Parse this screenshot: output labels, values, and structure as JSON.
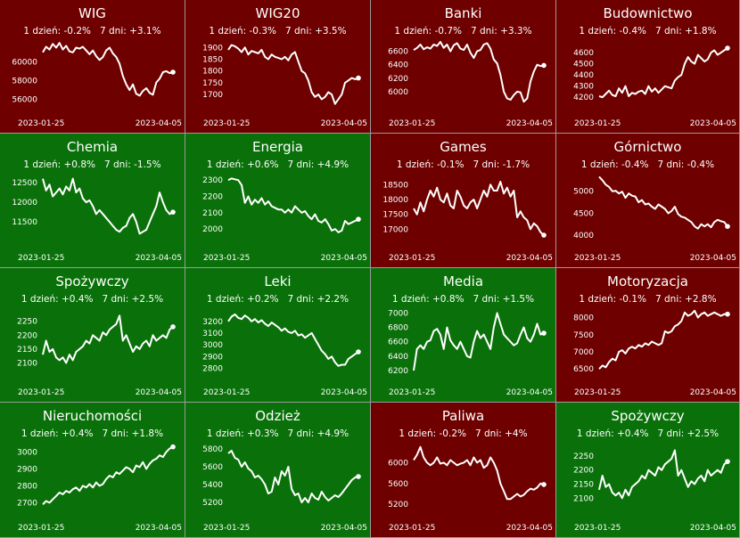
{
  "colors": {
    "up": "#0a710a",
    "down": "#6e0000",
    "line": "#ffffff"
  },
  "change_labels": {
    "day": "1 dzień:",
    "week": "7 dni:"
  },
  "chart_data": [
    {
      "type": "line",
      "title": "WIG",
      "change_1d": "-0.2%",
      "change_7d": "+3.1%",
      "trend": "down",
      "x_labels": [
        "2023-01-25",
        "2023-04-05"
      ],
      "yticks": [
        56000,
        58000,
        60000
      ],
      "ylim": [
        55400,
        62400
      ],
      "values": [
        61000,
        61600,
        61300,
        61900,
        61500,
        62000,
        61300,
        61700,
        61100,
        61000,
        61500,
        61400,
        61600,
        61200,
        60800,
        61200,
        60600,
        60200,
        60500,
        61200,
        61500,
        60900,
        60500,
        59800,
        58500,
        57600,
        57000,
        57600,
        56600,
        56400,
        56900,
        57200,
        56700,
        56500,
        57800,
        58200,
        58900,
        59000,
        58800,
        58900
      ]
    },
    {
      "type": "line",
      "title": "WIG20",
      "change_1d": "-0.3%",
      "change_7d": "+3.5%",
      "trend": "down",
      "x_labels": [
        "2023-01-25",
        "2023-04-05"
      ],
      "yticks": [
        1700,
        1750,
        1800,
        1850,
        1900
      ],
      "ylim": [
        1655,
        1935
      ],
      "values": [
        1890,
        1910,
        1905,
        1895,
        1880,
        1900,
        1870,
        1885,
        1880,
        1875,
        1890,
        1860,
        1850,
        1870,
        1860,
        1855,
        1850,
        1860,
        1845,
        1870,
        1880,
        1840,
        1800,
        1790,
        1760,
        1710,
        1690,
        1700,
        1680,
        1690,
        1710,
        1700,
        1660,
        1680,
        1700,
        1750,
        1760,
        1770,
        1765,
        1770
      ]
    },
    {
      "type": "line",
      "title": "Banki",
      "change_1d": "-0.7%",
      "change_7d": "+3.3%",
      "trend": "down",
      "x_labels": [
        "2023-01-25",
        "2023-04-05"
      ],
      "yticks": [
        6000,
        6200,
        6400,
        6600
      ],
      "ylim": [
        5800,
        6780
      ],
      "values": [
        6620,
        6650,
        6700,
        6630,
        6660,
        6640,
        6700,
        6680,
        6740,
        6650,
        6700,
        6600,
        6690,
        6720,
        6640,
        6620,
        6700,
        6580,
        6500,
        6600,
        6620,
        6700,
        6720,
        6640,
        6480,
        6420,
        6250,
        6000,
        5900,
        5880,
        5950,
        6000,
        5990,
        5850,
        5900,
        6150,
        6300,
        6400,
        6380,
        6390
      ]
    },
    {
      "type": "line",
      "title": "Budownictwo",
      "change_1d": "-0.4%",
      "change_7d": "+1.8%",
      "trend": "down",
      "x_labels": [
        "2023-01-25",
        "2023-04-05"
      ],
      "yticks": [
        4200,
        4300,
        4400,
        4500,
        4600
      ],
      "ylim": [
        4130,
        4720
      ],
      "values": [
        4210,
        4200,
        4230,
        4260,
        4220,
        4210,
        4280,
        4240,
        4300,
        4210,
        4240,
        4230,
        4250,
        4260,
        4230,
        4300,
        4250,
        4280,
        4240,
        4270,
        4300,
        4290,
        4280,
        4350,
        4380,
        4400,
        4500,
        4560,
        4520,
        4500,
        4580,
        4550,
        4520,
        4540,
        4600,
        4620,
        4580,
        4600,
        4620,
        4640
      ]
    },
    {
      "type": "line",
      "title": "Chemia",
      "change_1d": "+0.8%",
      "change_7d": "-1.5%",
      "trend": "up",
      "x_labels": [
        "2023-01-25",
        "2023-04-05"
      ],
      "yticks": [
        11500,
        12000,
        12500
      ],
      "ylim": [
        11050,
        12750
      ],
      "values": [
        12600,
        12300,
        12450,
        12150,
        12250,
        12350,
        12200,
        12400,
        12300,
        12600,
        12250,
        12350,
        12100,
        12000,
        12050,
        11900,
        11700,
        11800,
        11700,
        11600,
        11500,
        11400,
        11300,
        11250,
        11350,
        11400,
        11600,
        11700,
        11500,
        11200,
        11250,
        11300,
        11500,
        11700,
        11900,
        12250,
        12000,
        11800,
        11700,
        11750
      ]
    },
    {
      "type": "line",
      "title": "Energia",
      "change_1d": "+0.6%",
      "change_7d": "+4.9%",
      "trend": "up",
      "x_labels": [
        "2023-01-25",
        "2023-04-05"
      ],
      "yticks": [
        2000,
        2100,
        2200,
        2300
      ],
      "ylim": [
        1935,
        2345
      ],
      "values": [
        2300,
        2310,
        2305,
        2300,
        2270,
        2160,
        2200,
        2150,
        2180,
        2160,
        2190,
        2150,
        2170,
        2140,
        2130,
        2120,
        2120,
        2100,
        2120,
        2100,
        2140,
        2120,
        2100,
        2110,
        2080,
        2060,
        2090,
        2050,
        2040,
        2060,
        2030,
        1990,
        2000,
        1980,
        1990,
        2050,
        2030,
        2040,
        2050,
        2060
      ]
    },
    {
      "type": "line",
      "title": "Games",
      "change_1d": "-0.1%",
      "change_7d": "-1.7%",
      "trend": "down",
      "x_labels": [
        "2023-01-25",
        "2023-04-05"
      ],
      "yticks": [
        17000,
        17500,
        18000,
        18500
      ],
      "ylim": [
        16650,
        18900
      ],
      "values": [
        17700,
        17500,
        17900,
        17600,
        18000,
        18300,
        18100,
        18400,
        18000,
        17900,
        18200,
        17800,
        17700,
        18300,
        18100,
        17800,
        17700,
        17900,
        18000,
        17700,
        18000,
        18300,
        18100,
        18500,
        18300,
        18300,
        18600,
        18200,
        18400,
        18100,
        18300,
        17400,
        17600,
        17400,
        17300,
        17000,
        17200,
        17100,
        16900,
        16800
      ]
    },
    {
      "type": "line",
      "title": "Górnictwo",
      "change_1d": "-0.4%",
      "change_7d": "-0.4%",
      "trend": "down",
      "x_labels": [
        "2023-01-25",
        "2023-04-05"
      ],
      "yticks": [
        4000,
        4500,
        5000
      ],
      "ylim": [
        3900,
        5420
      ],
      "values": [
        5330,
        5250,
        5150,
        5100,
        5000,
        5010,
        4950,
        4990,
        4850,
        4950,
        4900,
        4880,
        4750,
        4800,
        4700,
        4720,
        4650,
        4600,
        4700,
        4650,
        4600,
        4500,
        4550,
        4650,
        4480,
        4420,
        4400,
        4350,
        4300,
        4200,
        4150,
        4250,
        4200,
        4250,
        4180,
        4300,
        4350,
        4320,
        4300,
        4200
      ]
    },
    {
      "type": "line",
      "title": "Spożywczy",
      "change_1d": "+0.4%",
      "change_7d": "+2.5%",
      "trend": "up",
      "x_labels": [
        "2023-01-25",
        "2023-04-05"
      ],
      "yticks": [
        2100,
        2150,
        2200,
        2250
      ],
      "ylim": [
        2060,
        2300
      ],
      "values": [
        2130,
        2180,
        2140,
        2150,
        2120,
        2110,
        2120,
        2100,
        2130,
        2110,
        2140,
        2150,
        2160,
        2180,
        2170,
        2200,
        2190,
        2180,
        2210,
        2200,
        2220,
        2230,
        2240,
        2270,
        2180,
        2200,
        2170,
        2140,
        2160,
        2150,
        2170,
        2180,
        2160,
        2200,
        2180,
        2190,
        2200,
        2190,
        2220,
        2230
      ]
    },
    {
      "type": "line",
      "title": "Leki",
      "change_1d": "+0.2%",
      "change_7d": "+2.2%",
      "trend": "up",
      "x_labels": [
        "2023-01-25",
        "2023-04-05"
      ],
      "yticks": [
        2800,
        2900,
        3000,
        3100,
        3200
      ],
      "ylim": [
        2750,
        3320
      ],
      "values": [
        3200,
        3240,
        3260,
        3230,
        3220,
        3250,
        3230,
        3200,
        3220,
        3190,
        3210,
        3180,
        3160,
        3190,
        3170,
        3150,
        3120,
        3140,
        3110,
        3100,
        3120,
        3080,
        3090,
        3060,
        3080,
        3100,
        3050,
        3000,
        2950,
        2920,
        2880,
        2900,
        2850,
        2820,
        2830,
        2830,
        2880,
        2900,
        2920,
        2940
      ]
    },
    {
      "type": "line",
      "title": "Media",
      "change_1d": "+0.8%",
      "change_7d": "+1.5%",
      "trend": "up",
      "x_labels": [
        "2023-01-25",
        "2023-04-05"
      ],
      "yticks": [
        6200,
        6400,
        6600,
        6800,
        7000
      ],
      "ylim": [
        6150,
        7080
      ],
      "values": [
        6200,
        6500,
        6550,
        6500,
        6600,
        6620,
        6750,
        6780,
        6700,
        6500,
        6800,
        6620,
        6550,
        6500,
        6600,
        6500,
        6400,
        6380,
        6600,
        6750,
        6650,
        6700,
        6600,
        6500,
        6800,
        7000,
        6850,
        6700,
        6650,
        6600,
        6550,
        6580,
        6700,
        6800,
        6650,
        6600,
        6700,
        6850,
        6700,
        6720
      ]
    },
    {
      "type": "line",
      "title": "Motoryzacja",
      "change_1d": "-0.1%",
      "change_7d": "+2.8%",
      "trend": "down",
      "x_labels": [
        "2023-01-25",
        "2023-04-05"
      ],
      "yticks": [
        6500,
        7000,
        7500,
        8000
      ],
      "ylim": [
        6350,
        8300
      ],
      "values": [
        6500,
        6600,
        6550,
        6700,
        6800,
        6750,
        7000,
        7050,
        6950,
        7100,
        7150,
        7100,
        7200,
        7150,
        7250,
        7200,
        7300,
        7250,
        7200,
        7250,
        7600,
        7550,
        7600,
        7750,
        7800,
        7900,
        8150,
        8050,
        8100,
        8200,
        8000,
        8100,
        8150,
        8050,
        8100,
        8150,
        8100,
        8050,
        8100,
        8100
      ]
    },
    {
      "type": "line",
      "title": "Nieruchomości",
      "change_1d": "+0.4%",
      "change_7d": "+1.8%",
      "trend": "up",
      "x_labels": [
        "2023-01-25",
        "2023-04-05"
      ],
      "yticks": [
        2700,
        2800,
        2900,
        3000
      ],
      "ylim": [
        2660,
        3060
      ],
      "values": [
        2690,
        2710,
        2700,
        2720,
        2740,
        2760,
        2750,
        2770,
        2760,
        2780,
        2790,
        2770,
        2800,
        2790,
        2810,
        2790,
        2820,
        2800,
        2810,
        2840,
        2860,
        2850,
        2880,
        2870,
        2890,
        2910,
        2900,
        2880,
        2920,
        2910,
        2940,
        2900,
        2930,
        2950,
        2960,
        2980,
        2970,
        3000,
        3020,
        3030
      ]
    },
    {
      "type": "line",
      "title": "Odzież",
      "change_1d": "+0.3%",
      "change_7d": "+4.9%",
      "trend": "up",
      "x_labels": [
        "2023-01-25",
        "2023-04-05"
      ],
      "yticks": [
        5200,
        5400,
        5600,
        5800
      ],
      "ylim": [
        5120,
        5880
      ],
      "values": [
        5750,
        5780,
        5700,
        5680,
        5600,
        5650,
        5580,
        5550,
        5480,
        5500,
        5460,
        5400,
        5300,
        5320,
        5480,
        5400,
        5550,
        5500,
        5600,
        5350,
        5280,
        5300,
        5200,
        5250,
        5200,
        5300,
        5250,
        5230,
        5320,
        5260,
        5220,
        5250,
        5280,
        5260,
        5300,
        5350,
        5400,
        5450,
        5480,
        5490
      ]
    },
    {
      "type": "line",
      "title": "Paliwa",
      "change_1d": "-0.2%",
      "change_7d": "+4%",
      "trend": "down",
      "x_labels": [
        "2023-01-25",
        "2023-04-05"
      ],
      "yticks": [
        5200,
        5600,
        6000
      ],
      "ylim": [
        5100,
        6400
      ],
      "values": [
        6050,
        6150,
        6300,
        6100,
        6000,
        5950,
        6000,
        6100,
        5980,
        6000,
        5950,
        6050,
        6000,
        5950,
        5980,
        6000,
        6050,
        5950,
        6100,
        6000,
        6050,
        5900,
        5950,
        6100,
        6000,
        5850,
        5600,
        5450,
        5300,
        5300,
        5350,
        5400,
        5350,
        5380,
        5450,
        5500,
        5480,
        5520,
        5600,
        5580
      ]
    },
    {
      "type": "line",
      "title": "Spożywczy",
      "change_1d": "+0.4%",
      "change_7d": "+2.5%",
      "trend": "up",
      "x_labels": [
        "2023-01-25",
        "2023-04-05"
      ],
      "yticks": [
        2100,
        2150,
        2200,
        2250
      ],
      "ylim": [
        2060,
        2300
      ],
      "values": [
        2130,
        2180,
        2140,
        2150,
        2120,
        2110,
        2120,
        2100,
        2130,
        2110,
        2140,
        2150,
        2160,
        2180,
        2170,
        2200,
        2190,
        2180,
        2210,
        2200,
        2220,
        2230,
        2240,
        2270,
        2180,
        2200,
        2170,
        2140,
        2160,
        2150,
        2170,
        2180,
        2160,
        2200,
        2180,
        2190,
        2200,
        2190,
        2220,
        2230
      ]
    }
  ]
}
